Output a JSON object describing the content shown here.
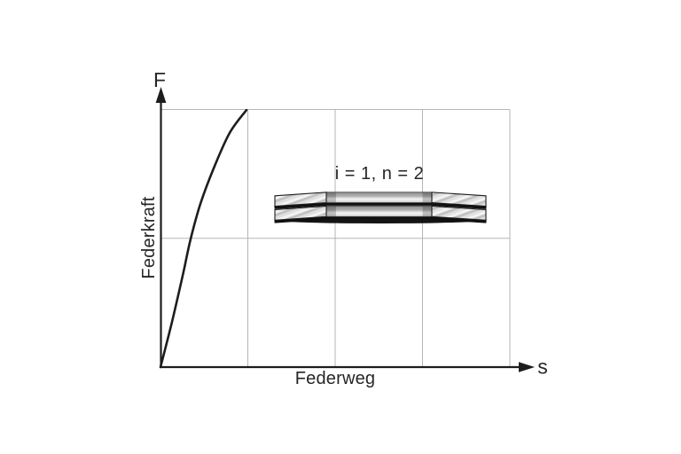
{
  "figure": {
    "background": "#ffffff",
    "ink_color": "#1d1d1d",
    "grid_color": "#b5b5b5"
  },
  "chart_data": {
    "type": "line",
    "title": "",
    "xlabel": "Federweg",
    "ylabel": "Federkraft",
    "x_axis_symbol": "s",
    "y_axis_symbol": "F",
    "annotation": "i = 1, n = 2",
    "axes_tick_labels": [],
    "grid": {
      "columns": 4,
      "rows": 2,
      "visible": true
    },
    "x_range_rel": [
      0,
      1
    ],
    "y_range_rel": [
      0,
      1
    ],
    "legend": null,
    "series": [
      {
        "name": "disc-spring force-deflection curve (degressive)",
        "points_rel": [
          [
            0.0,
            0.0
          ],
          [
            0.033,
            0.176
          ],
          [
            0.064,
            0.358
          ],
          [
            0.086,
            0.496
          ],
          [
            0.114,
            0.633
          ],
          [
            0.152,
            0.771
          ],
          [
            0.198,
            0.909
          ],
          [
            0.246,
            0.998
          ]
        ]
      }
    ]
  }
}
